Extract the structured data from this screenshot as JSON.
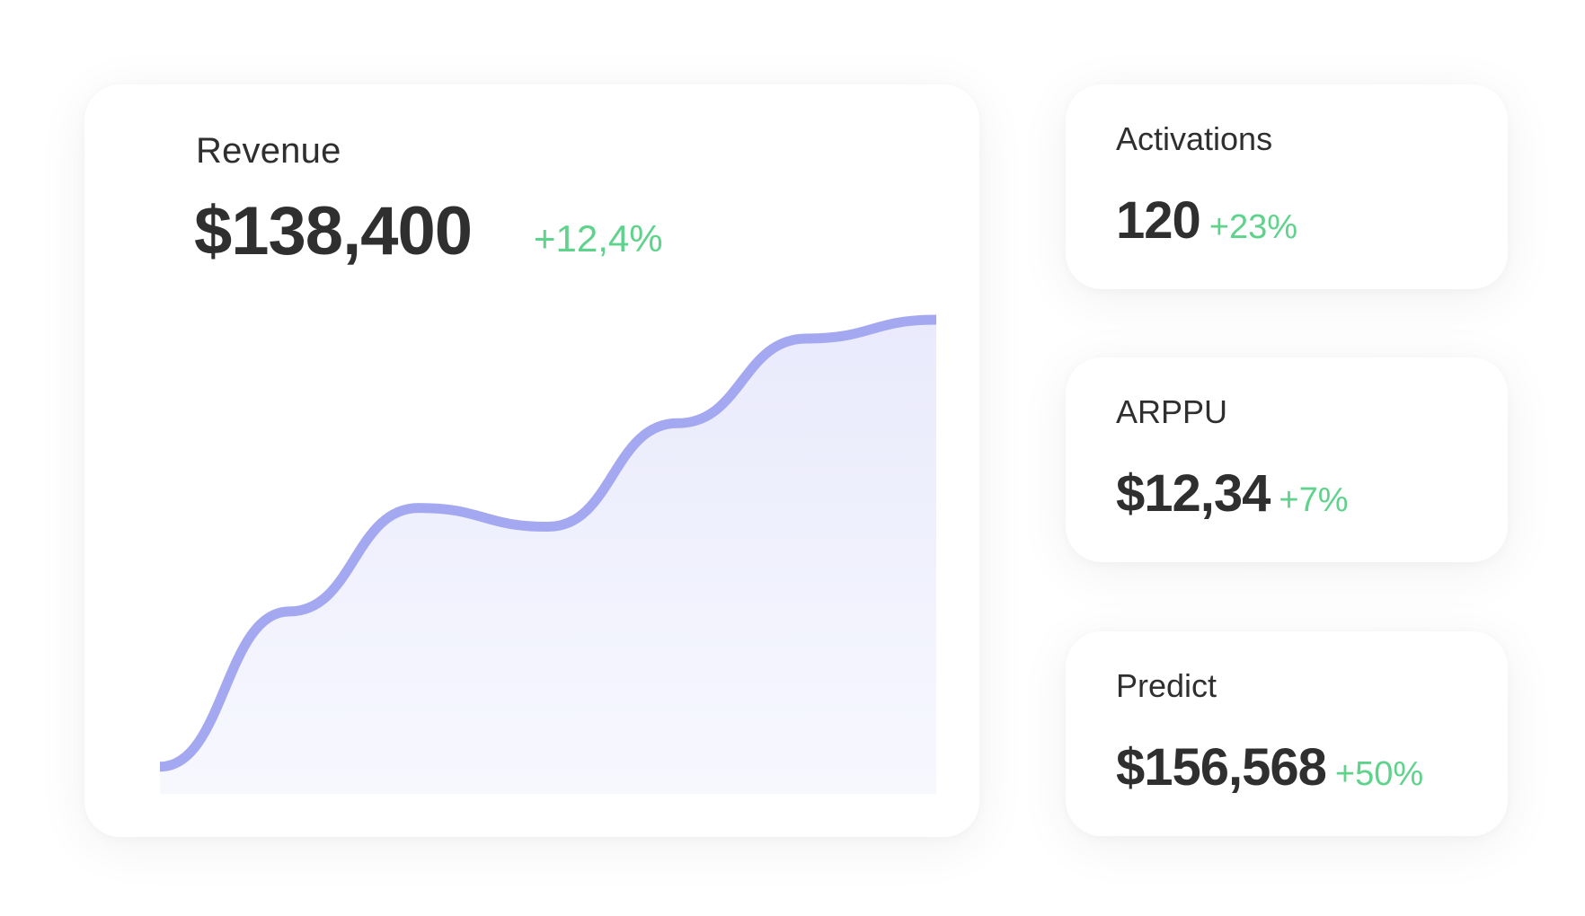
{
  "revenue": {
    "title": "Revenue",
    "value": "$138,400",
    "delta": "+12,4%"
  },
  "activations": {
    "title": "Activations",
    "value": "120",
    "delta": "+23%"
  },
  "arppu": {
    "title": "ARPPU",
    "value": "$12,34",
    "delta": "+7%"
  },
  "predict": {
    "title": "Predict",
    "value": "$156,568",
    "delta": "+50%"
  },
  "colors": {
    "line": "#a3a8f0",
    "fill_top": "#e9eafc",
    "positive": "#5fd38b",
    "text": "#2f2f2f"
  },
  "chart_data": {
    "type": "area",
    "x": [
      0,
      1,
      2,
      3,
      4,
      5,
      6
    ],
    "values": [
      5,
      38,
      60,
      56,
      78,
      96,
      100
    ],
    "ylim": [
      0,
      100
    ],
    "grid": false
  }
}
